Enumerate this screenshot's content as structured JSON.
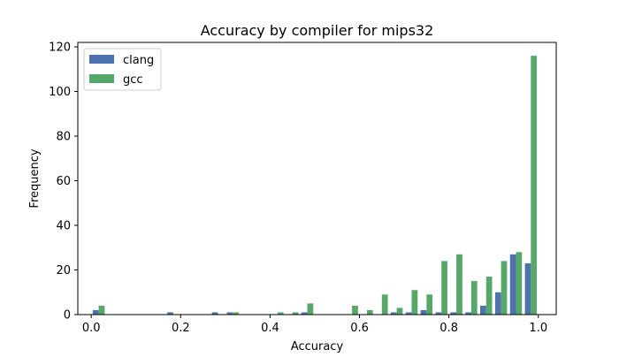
{
  "chart_data": {
    "type": "bar",
    "title": "Accuracy by compiler for mips32",
    "xlabel": "Accuracy",
    "ylabel": "Frequency",
    "xlim": [
      -0.03,
      1.04
    ],
    "ylim": [
      0,
      122
    ],
    "xticks": [
      0.0,
      0.2,
      0.4,
      0.6,
      0.8,
      1.0
    ],
    "xtick_labels": [
      "0.0",
      "0.2",
      "0.4",
      "0.6",
      "0.8",
      "1.0"
    ],
    "yticks": [
      0,
      20,
      40,
      60,
      80,
      100,
      120
    ],
    "ytick_labels": [
      "0",
      "20",
      "40",
      "60",
      "80",
      "100",
      "120"
    ],
    "grid": false,
    "legend_position": "top-left",
    "bin_width": 0.0333,
    "bin_centers": [
      0.0167,
      0.05,
      0.0833,
      0.1167,
      0.15,
      0.1833,
      0.2167,
      0.25,
      0.2833,
      0.3167,
      0.35,
      0.3833,
      0.4167,
      0.45,
      0.4833,
      0.5167,
      0.55,
      0.5833,
      0.6167,
      0.65,
      0.6833,
      0.7167,
      0.75,
      0.7833,
      0.8167,
      0.85,
      0.8833,
      0.9167,
      0.95,
      0.9833
    ],
    "series": [
      {
        "name": "clang",
        "color": "#4c72b0",
        "values": [
          2,
          0,
          0,
          0,
          0,
          1,
          0,
          0,
          1,
          1,
          0,
          0,
          0,
          0,
          1,
          0,
          0,
          0,
          0,
          0,
          1,
          1,
          2,
          1,
          1,
          1,
          4,
          10,
          27,
          23
        ]
      },
      {
        "name": "gcc",
        "color": "#55a868",
        "values": [
          4,
          0,
          0,
          0,
          0,
          0,
          0,
          0,
          0,
          1,
          0,
          0,
          1,
          1,
          5,
          0,
          0,
          4,
          2,
          9,
          3,
          11,
          9,
          24,
          27,
          15,
          17,
          24,
          28,
          116
        ]
      }
    ]
  }
}
